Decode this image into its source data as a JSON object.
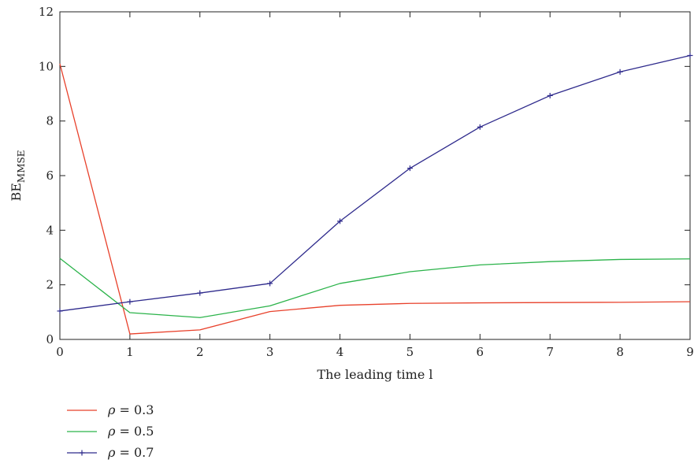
{
  "chart_data": {
    "type": "line",
    "xlabel": "The leading time l",
    "ylabel": "BE",
    "ylabel_subscript": "MMSE",
    "xlim": [
      0,
      9
    ],
    "ylim": [
      0,
      12
    ],
    "xticks": [
      0,
      1,
      2,
      3,
      4,
      5,
      6,
      7,
      8,
      9
    ],
    "yticks": [
      0,
      2,
      4,
      6,
      8,
      10,
      12
    ],
    "grid": false,
    "legend_position": "bottom-left",
    "x": [
      0,
      1,
      2,
      3,
      4,
      5,
      6,
      7,
      8,
      9
    ],
    "series": [
      {
        "name": "ρ = 0.3",
        "name_symbol": "ρ",
        "name_rest": " = 0.3",
        "color": "#e8412b",
        "marker": "none",
        "values": [
          10.1,
          0.2,
          0.35,
          1.02,
          1.25,
          1.32,
          1.34,
          1.35,
          1.36,
          1.38
        ]
      },
      {
        "name": "ρ = 0.5",
        "name_symbol": "ρ",
        "name_rest": " = 0.5",
        "color": "#2bb34a",
        "marker": "none",
        "values": [
          2.97,
          0.98,
          0.8,
          1.23,
          2.05,
          2.48,
          2.73,
          2.85,
          2.93,
          2.95
        ]
      },
      {
        "name": "ρ = 0.7",
        "name_symbol": "ρ",
        "name_rest": " = 0.7",
        "color": "#2e2a8c",
        "marker": "plus",
        "values": [
          1.04,
          1.38,
          1.7,
          2.05,
          4.33,
          6.27,
          7.78,
          8.93,
          9.8,
          10.4
        ]
      }
    ]
  }
}
